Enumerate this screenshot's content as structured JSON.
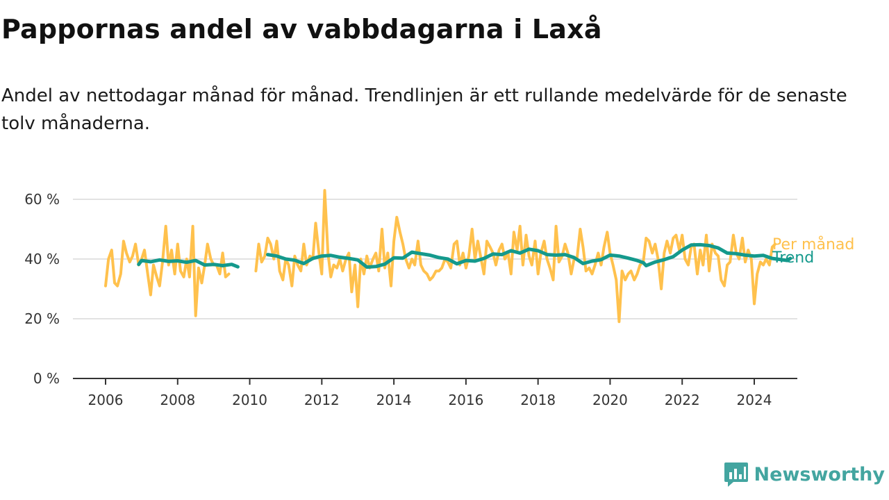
{
  "title": "Pappornas andel av vabbdagarna i Laxå",
  "subtitle": "Andel av nettodagar månad för månad. Trendlinjen är ett rullande medelvärde för de senaste tolv månaderna.",
  "brand": {
    "name": "Newsworthy",
    "icon": "newsworthy-logo-icon",
    "color": "#43a5a0"
  },
  "chart_data": {
    "type": "line",
    "title": "Pappornas andel av vabbdagarna i Laxå",
    "xlabel": "",
    "ylabel": "",
    "xlim": [
      2006,
      2024.6
    ],
    "ylim": [
      0,
      65
    ],
    "x_ticks": [
      2006,
      2008,
      2010,
      2012,
      2014,
      2016,
      2018,
      2020,
      2022,
      2024
    ],
    "y_ticks": [
      0,
      20,
      40,
      60
    ],
    "y_tick_labels": [
      "0 %",
      "20 %",
      "40 %",
      "60 %"
    ],
    "grid": "horizontal",
    "legend": "inline labels at line ends",
    "series": [
      {
        "name": "Per månad",
        "color": "#ffc14d",
        "points": [
          [
            2006.0,
            31
          ],
          [
            2006.08,
            40
          ],
          [
            2006.17,
            43
          ],
          [
            2006.25,
            32
          ],
          [
            2006.33,
            31
          ],
          [
            2006.42,
            35
          ],
          [
            2006.5,
            46
          ],
          [
            2006.58,
            42
          ],
          [
            2006.67,
            39
          ],
          [
            2006.75,
            41
          ],
          [
            2006.83,
            45
          ],
          [
            2006.92,
            38
          ],
          [
            2007.0,
            40
          ],
          [
            2007.08,
            43
          ],
          [
            2007.17,
            35
          ],
          [
            2007.25,
            28
          ],
          [
            2007.33,
            38
          ],
          [
            2007.42,
            34
          ],
          [
            2007.5,
            31
          ],
          [
            2007.58,
            39
          ],
          [
            2007.67,
            51
          ],
          [
            2007.75,
            38
          ],
          [
            2007.83,
            43
          ],
          [
            2007.92,
            35
          ],
          [
            2008.0,
            45
          ],
          [
            2008.08,
            36
          ],
          [
            2008.17,
            34
          ],
          [
            2008.25,
            40
          ],
          [
            2008.33,
            34
          ],
          [
            2008.42,
            51
          ],
          [
            2008.5,
            21
          ],
          [
            2008.58,
            37
          ],
          [
            2008.67,
            32
          ],
          [
            2008.75,
            38
          ],
          [
            2008.83,
            45
          ],
          [
            2008.92,
            40
          ],
          [
            2009.0,
            38
          ],
          [
            2009.08,
            38
          ],
          [
            2009.17,
            35
          ],
          [
            2009.25,
            42
          ],
          [
            2009.33,
            34
          ],
          [
            2009.42,
            35
          ],
          [
            2010.17,
            36
          ],
          [
            2010.25,
            45
          ],
          [
            2010.33,
            39
          ],
          [
            2010.42,
            41
          ],
          [
            2010.5,
            47
          ],
          [
            2010.58,
            45
          ],
          [
            2010.67,
            40
          ],
          [
            2010.75,
            46
          ],
          [
            2010.83,
            36
          ],
          [
            2010.92,
            33
          ],
          [
            2011.0,
            40
          ],
          [
            2011.08,
            38
          ],
          [
            2011.17,
            31
          ],
          [
            2011.25,
            41
          ],
          [
            2011.33,
            38
          ],
          [
            2011.42,
            36
          ],
          [
            2011.5,
            45
          ],
          [
            2011.58,
            38
          ],
          [
            2011.67,
            41
          ],
          [
            2011.75,
            40
          ],
          [
            2011.83,
            52
          ],
          [
            2011.92,
            42
          ],
          [
            2012.0,
            35
          ],
          [
            2012.08,
            63
          ],
          [
            2012.17,
            42
          ],
          [
            2012.25,
            34
          ],
          [
            2012.33,
            38
          ],
          [
            2012.42,
            37
          ],
          [
            2012.5,
            40
          ],
          [
            2012.58,
            36
          ],
          [
            2012.67,
            40
          ],
          [
            2012.75,
            42
          ],
          [
            2012.83,
            29
          ],
          [
            2012.92,
            38
          ],
          [
            2013.0,
            24
          ],
          [
            2013.08,
            40
          ],
          [
            2013.17,
            35
          ],
          [
            2013.25,
            41
          ],
          [
            2013.33,
            37
          ],
          [
            2013.42,
            40
          ],
          [
            2013.5,
            42
          ],
          [
            2013.58,
            36
          ],
          [
            2013.67,
            50
          ],
          [
            2013.75,
            37
          ],
          [
            2013.83,
            42
          ],
          [
            2013.92,
            31
          ],
          [
            2014.0,
            46
          ],
          [
            2014.08,
            54
          ],
          [
            2014.17,
            49
          ],
          [
            2014.25,
            45
          ],
          [
            2014.33,
            40
          ],
          [
            2014.42,
            37
          ],
          [
            2014.5,
            40
          ],
          [
            2014.58,
            38
          ],
          [
            2014.67,
            46
          ],
          [
            2014.75,
            38
          ],
          [
            2014.83,
            36
          ],
          [
            2014.92,
            35
          ],
          [
            2015.0,
            33
          ],
          [
            2015.08,
            34
          ],
          [
            2015.17,
            36
          ],
          [
            2015.25,
            36
          ],
          [
            2015.33,
            37
          ],
          [
            2015.42,
            40
          ],
          [
            2015.5,
            39
          ],
          [
            2015.58,
            37
          ],
          [
            2015.67,
            45
          ],
          [
            2015.75,
            46
          ],
          [
            2015.83,
            38
          ],
          [
            2015.92,
            42
          ],
          [
            2016.0,
            37
          ],
          [
            2016.08,
            41
          ],
          [
            2016.17,
            50
          ],
          [
            2016.25,
            40
          ],
          [
            2016.33,
            46
          ],
          [
            2016.42,
            40
          ],
          [
            2016.5,
            35
          ],
          [
            2016.58,
            46
          ],
          [
            2016.67,
            44
          ],
          [
            2016.75,
            42
          ],
          [
            2016.83,
            38
          ],
          [
            2016.92,
            43
          ],
          [
            2017.0,
            45
          ],
          [
            2017.08,
            40
          ],
          [
            2017.17,
            42
          ],
          [
            2017.25,
            35
          ],
          [
            2017.33,
            49
          ],
          [
            2017.42,
            43
          ],
          [
            2017.5,
            51
          ],
          [
            2017.58,
            38
          ],
          [
            2017.67,
            48
          ],
          [
            2017.75,
            41
          ],
          [
            2017.83,
            38
          ],
          [
            2017.92,
            46
          ],
          [
            2018.0,
            35
          ],
          [
            2018.08,
            42
          ],
          [
            2018.17,
            46
          ],
          [
            2018.25,
            40
          ],
          [
            2018.33,
            37
          ],
          [
            2018.42,
            33
          ],
          [
            2018.5,
            51
          ],
          [
            2018.58,
            39
          ],
          [
            2018.67,
            41
          ],
          [
            2018.75,
            45
          ],
          [
            2018.83,
            42
          ],
          [
            2018.92,
            35
          ],
          [
            2019.0,
            40
          ],
          [
            2019.08,
            40
          ],
          [
            2019.17,
            50
          ],
          [
            2019.25,
            44
          ],
          [
            2019.33,
            36
          ],
          [
            2019.42,
            37
          ],
          [
            2019.5,
            35
          ],
          [
            2019.58,
            38
          ],
          [
            2019.67,
            42
          ],
          [
            2019.75,
            38
          ],
          [
            2019.83,
            44
          ],
          [
            2019.92,
            49
          ],
          [
            2020.0,
            42
          ],
          [
            2020.08,
            38
          ],
          [
            2020.17,
            33
          ],
          [
            2020.25,
            19
          ],
          [
            2020.33,
            36
          ],
          [
            2020.42,
            33
          ],
          [
            2020.5,
            35
          ],
          [
            2020.58,
            36
          ],
          [
            2020.67,
            33
          ],
          [
            2020.75,
            35
          ],
          [
            2020.83,
            38
          ],
          [
            2020.92,
            39
          ],
          [
            2021.0,
            47
          ],
          [
            2021.08,
            46
          ],
          [
            2021.17,
            42
          ],
          [
            2021.25,
            45
          ],
          [
            2021.33,
            40
          ],
          [
            2021.42,
            30
          ],
          [
            2021.5,
            42
          ],
          [
            2021.58,
            46
          ],
          [
            2021.67,
            42
          ],
          [
            2021.75,
            47
          ],
          [
            2021.83,
            48
          ],
          [
            2021.92,
            43
          ],
          [
            2022.0,
            48
          ],
          [
            2022.08,
            40
          ],
          [
            2022.17,
            38
          ],
          [
            2022.25,
            44
          ],
          [
            2022.33,
            45
          ],
          [
            2022.42,
            35
          ],
          [
            2022.5,
            43
          ],
          [
            2022.58,
            38
          ],
          [
            2022.67,
            48
          ],
          [
            2022.75,
            36
          ],
          [
            2022.83,
            45
          ],
          [
            2022.92,
            42
          ],
          [
            2023.0,
            41
          ],
          [
            2023.08,
            33
          ],
          [
            2023.17,
            31
          ],
          [
            2023.25,
            38
          ],
          [
            2023.33,
            39
          ],
          [
            2023.42,
            48
          ],
          [
            2023.5,
            42
          ],
          [
            2023.58,
            40
          ],
          [
            2023.67,
            47
          ],
          [
            2023.75,
            39
          ],
          [
            2023.83,
            43
          ],
          [
            2023.92,
            40
          ],
          [
            2024.0,
            25
          ],
          [
            2024.08,
            35
          ],
          [
            2024.17,
            39
          ],
          [
            2024.25,
            38
          ],
          [
            2024.33,
            40
          ],
          [
            2024.42,
            38
          ],
          [
            2024.5,
            44
          ],
          [
            2024.58,
            45
          ]
        ]
      },
      {
        "name": "Trend",
        "color": "#14998c",
        "points": [
          [
            2006.92,
            38.2
          ],
          [
            2007.0,
            39.5
          ],
          [
            2007.25,
            39.1
          ],
          [
            2007.5,
            39.7
          ],
          [
            2007.75,
            39.2
          ],
          [
            2008.0,
            39.4
          ],
          [
            2008.25,
            38.9
          ],
          [
            2008.5,
            39.5
          ],
          [
            2008.75,
            38.0
          ],
          [
            2009.0,
            38.2
          ],
          [
            2009.25,
            37.8
          ],
          [
            2009.5,
            38.2
          ],
          [
            2009.67,
            37.4
          ],
          [
            2010.5,
            41.5
          ],
          [
            2010.75,
            41.0
          ],
          [
            2011.0,
            40.0
          ],
          [
            2011.25,
            39.6
          ],
          [
            2011.5,
            38.5
          ],
          [
            2011.75,
            40.2
          ],
          [
            2012.0,
            41.0
          ],
          [
            2012.25,
            41.2
          ],
          [
            2012.5,
            40.6
          ],
          [
            2012.75,
            40.2
          ],
          [
            2013.0,
            39.7
          ],
          [
            2013.25,
            37.3
          ],
          [
            2013.5,
            37.5
          ],
          [
            2013.75,
            38.3
          ],
          [
            2014.0,
            40.4
          ],
          [
            2014.25,
            40.3
          ],
          [
            2014.5,
            42.3
          ],
          [
            2014.75,
            41.8
          ],
          [
            2015.0,
            41.3
          ],
          [
            2015.25,
            40.5
          ],
          [
            2015.5,
            40.0
          ],
          [
            2015.75,
            38.4
          ],
          [
            2016.0,
            39.5
          ],
          [
            2016.25,
            39.3
          ],
          [
            2016.5,
            40.2
          ],
          [
            2016.75,
            41.7
          ],
          [
            2017.0,
            41.5
          ],
          [
            2017.25,
            42.8
          ],
          [
            2017.5,
            42.0
          ],
          [
            2017.75,
            43.3
          ],
          [
            2018.0,
            42.8
          ],
          [
            2018.25,
            41.5
          ],
          [
            2018.5,
            41.3
          ],
          [
            2018.75,
            41.5
          ],
          [
            2019.0,
            40.5
          ],
          [
            2019.25,
            38.5
          ],
          [
            2019.5,
            39.3
          ],
          [
            2019.75,
            39.8
          ],
          [
            2020.0,
            41.3
          ],
          [
            2020.25,
            41.0
          ],
          [
            2020.5,
            40.3
          ],
          [
            2020.75,
            39.5
          ],
          [
            2020.92,
            38.8
          ],
          [
            2021.0,
            37.8
          ],
          [
            2021.25,
            39.0
          ],
          [
            2021.5,
            39.8
          ],
          [
            2021.75,
            40.8
          ],
          [
            2022.0,
            43.0
          ],
          [
            2022.25,
            44.7
          ],
          [
            2022.5,
            44.8
          ],
          [
            2022.75,
            44.5
          ],
          [
            2023.0,
            43.7
          ],
          [
            2023.25,
            42.0
          ],
          [
            2023.5,
            41.8
          ],
          [
            2023.75,
            41.3
          ],
          [
            2024.0,
            41.0
          ],
          [
            2024.25,
            41.2
          ],
          [
            2024.5,
            40.2
          ],
          [
            2024.75,
            39.8
          ],
          [
            2024.92,
            39.5
          ],
          [
            2025.0,
            40.2
          ]
        ]
      }
    ]
  }
}
